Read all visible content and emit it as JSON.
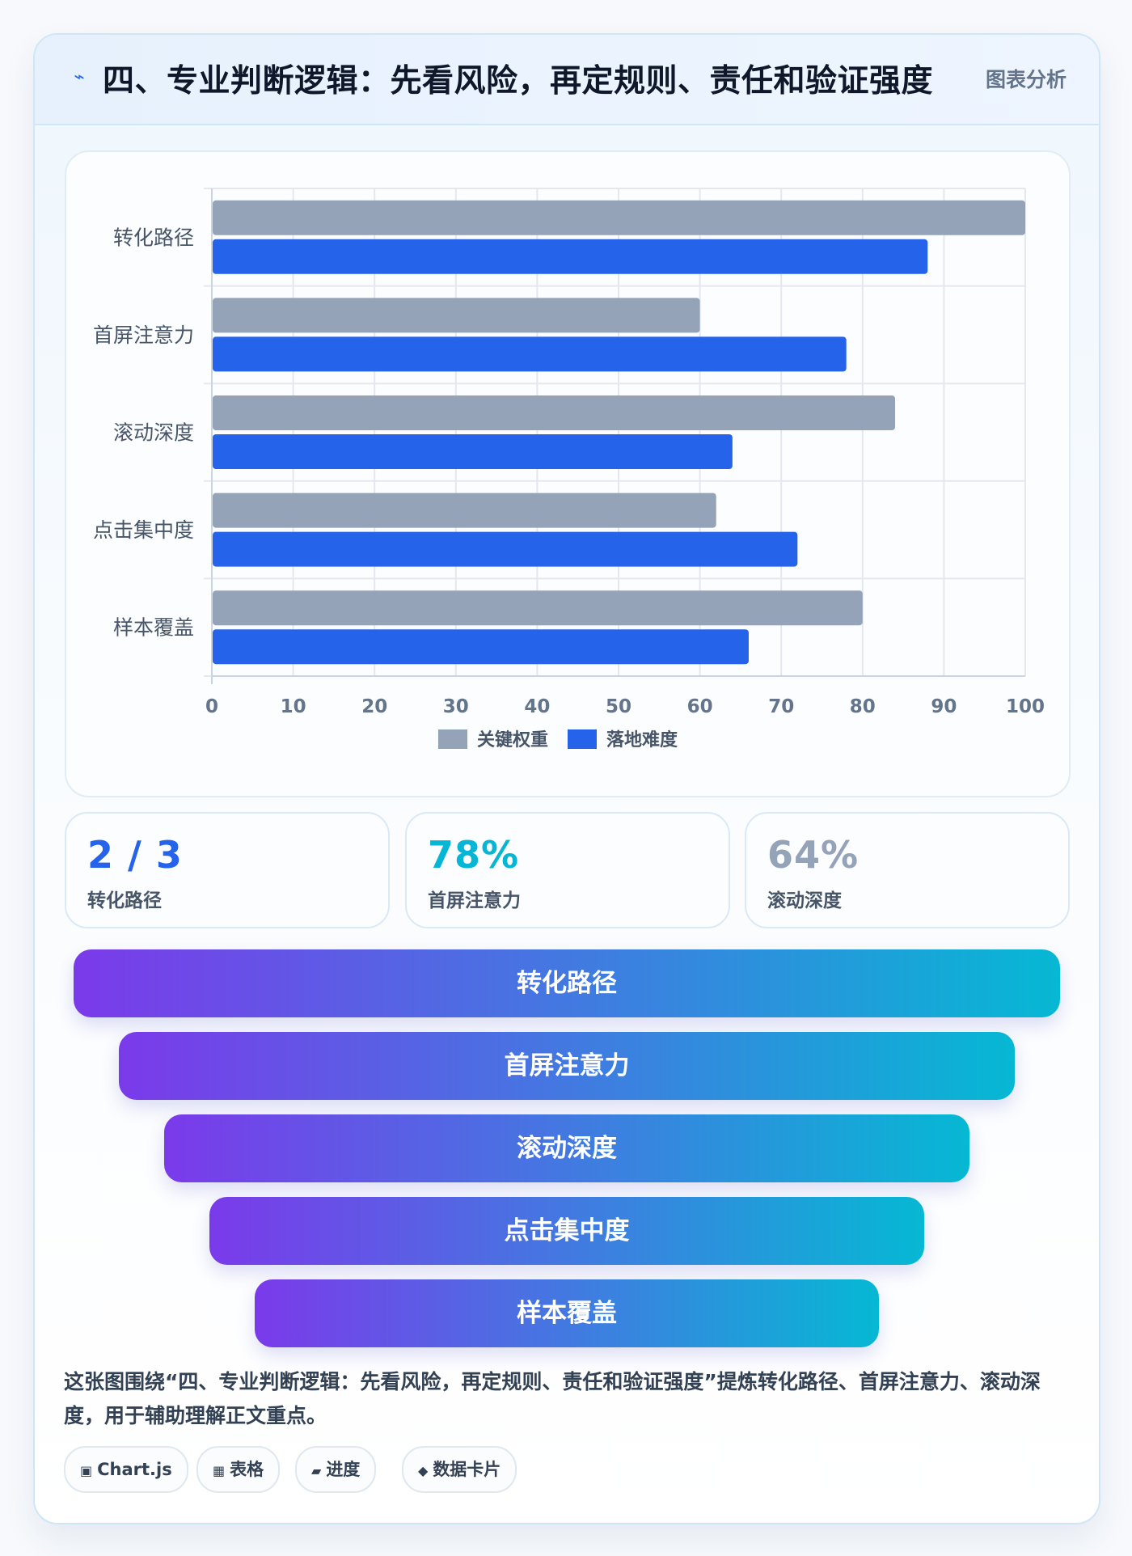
{
  "header": {
    "icon": "lightning-icon",
    "title": "四、专业判断逻辑：先看风险，再定规则、责任和验证强度",
    "tag": "图表分析"
  },
  "chart_data": {
    "type": "bar",
    "orientation": "horizontal",
    "categories": [
      "转化路径",
      "首屏注意力",
      "滚动深度",
      "点击集中度",
      "样本覆盖"
    ],
    "series": [
      {
        "name": "关键权重",
        "color": "#94a3b8",
        "values": [
          100,
          60,
          84,
          62,
          80
        ]
      },
      {
        "name": "落地难度",
        "color": "#2563eb",
        "values": [
          88,
          78,
          64,
          72,
          66
        ]
      }
    ],
    "xlim": [
      0,
      100
    ],
    "xticks": [
      "0",
      "10",
      "20",
      "30",
      "40",
      "50",
      "60",
      "70",
      "80",
      "90",
      "100"
    ],
    "grid": true,
    "legend": "bottom-center"
  },
  "stats": [
    {
      "value": "2 / 3",
      "label": "转化路径",
      "color": "#2563eb"
    },
    {
      "value": "78%",
      "label": "首屏注意力",
      "color": "#06b6d4"
    },
    {
      "value": "64%",
      "label": "滚动深度",
      "color": "#94a3b8"
    }
  ],
  "funnel": [
    "转化路径",
    "首屏注意力",
    "滚动深度",
    "点击集中度",
    "样本覆盖"
  ],
  "summary": "这张图围绕“四、专业判断逻辑：先看风险，再定规则、责任和验证强度”提炼转化路径、首屏注意力、滚动深度，用于辅助理解正文重点。",
  "tags": [
    {
      "icon": "chip-icon",
      "glyph": "▣",
      "label": "Chart.js"
    },
    {
      "icon": "table-icon",
      "glyph": "▦",
      "label": "表格"
    },
    {
      "icon": "progress-icon",
      "glyph": "▰",
      "label": "进度"
    },
    {
      "icon": "diamond-icon",
      "glyph": "◆",
      "label": "数据卡片"
    }
  ]
}
